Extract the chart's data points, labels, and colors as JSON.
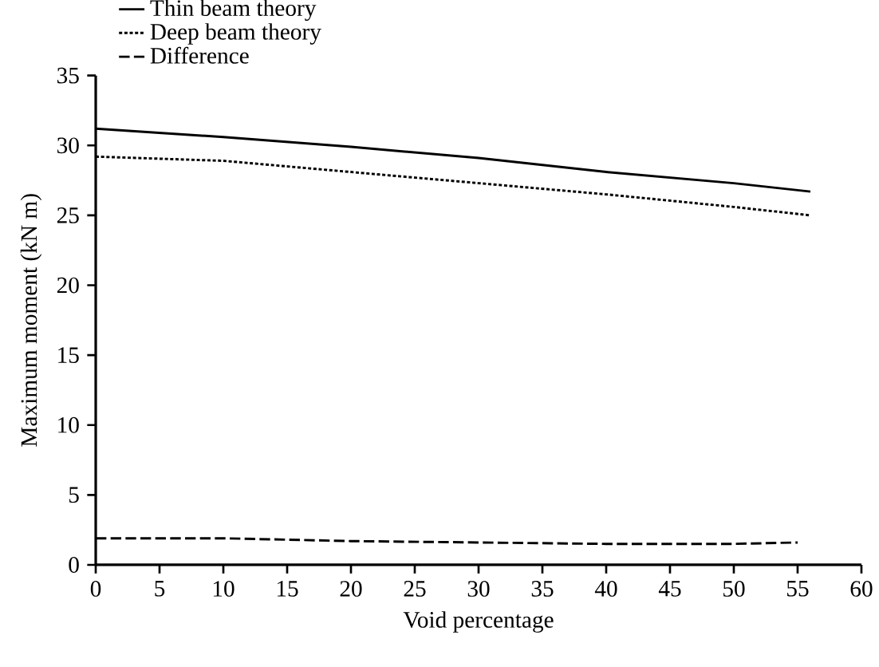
{
  "chart_data": {
    "type": "line",
    "xlabel": "Void percentage",
    "ylabel": "Maximum moment (kN m)",
    "xlim": [
      0,
      60
    ],
    "ylim": [
      0,
      35
    ],
    "xticks": [
      0,
      5,
      10,
      15,
      20,
      25,
      30,
      35,
      40,
      45,
      50,
      55,
      60
    ],
    "yticks": [
      0,
      5,
      10,
      15,
      20,
      25,
      30,
      35
    ],
    "legend": "top left",
    "grid": false,
    "series": [
      {
        "name": "Thin beam theory",
        "color": "#000000",
        "line_style": "solid",
        "x": [
          0,
          10,
          20,
          30,
          40,
          50,
          56
        ],
        "values": [
          31.2,
          30.6,
          29.9,
          29.1,
          28.1,
          27.3,
          26.7
        ]
      },
      {
        "name": "Deep beam theory",
        "color": "#000000",
        "line_style": "dotted",
        "x": [
          0,
          10,
          20,
          30,
          40,
          50,
          56
        ],
        "values": [
          29.2,
          28.9,
          28.1,
          27.3,
          26.5,
          25.6,
          25.0
        ]
      },
      {
        "name": "Difference",
        "color": "#000000",
        "line_style": "dashed",
        "x": [
          0,
          10,
          20,
          30,
          40,
          50,
          55
        ],
        "values": [
          1.9,
          1.9,
          1.7,
          1.6,
          1.5,
          1.5,
          1.6
        ]
      }
    ]
  }
}
